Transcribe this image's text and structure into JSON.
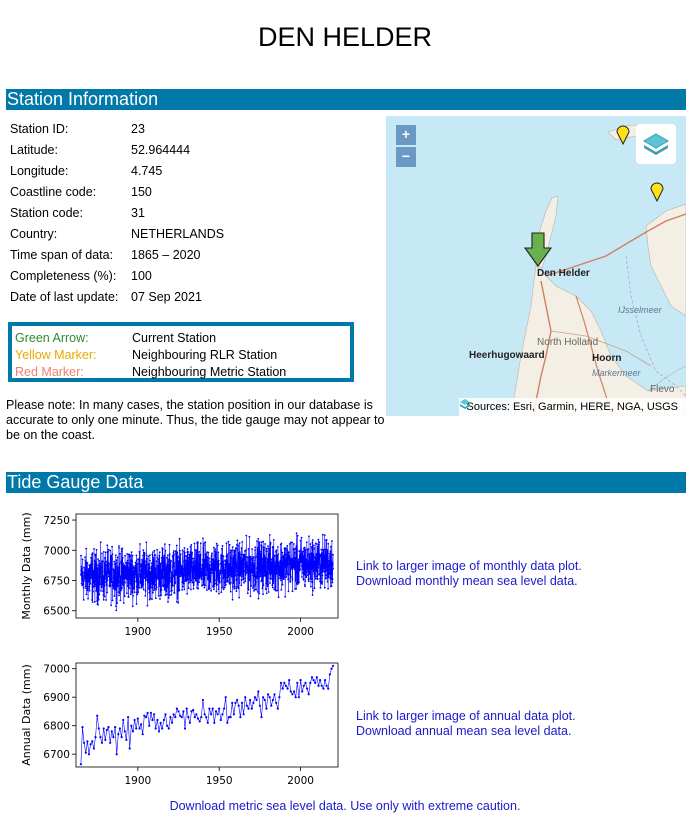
{
  "page": {
    "title": "DEN HELDER"
  },
  "station_section": {
    "heading": "Station Information",
    "rows": [
      {
        "label": "Station ID:",
        "value": "23"
      },
      {
        "label": "Latitude:",
        "value": "52.964444"
      },
      {
        "label": "Longitude:",
        "value": "4.745"
      },
      {
        "label": "Coastline code:",
        "value": "150"
      },
      {
        "label": "Station code:",
        "value": "31"
      },
      {
        "label": "Country:",
        "value": "NETHERLANDS"
      },
      {
        "label": "Time span of data:",
        "value": "1865 – 2020"
      },
      {
        "label": "Completeness (%):",
        "value": "100"
      },
      {
        "label": "Date of last update:",
        "value": "07 Sep 2021"
      }
    ]
  },
  "legend": {
    "items": [
      {
        "label": "Green Arrow:",
        "desc": "Current Station",
        "color": "#2e8b2e"
      },
      {
        "label": "Yellow Marker:",
        "desc": "Neighbouring RLR Station",
        "color": "#f0b400"
      },
      {
        "label": "Red Marker:",
        "desc": "Neighbouring Metric Station",
        "color": "#f08070"
      }
    ]
  },
  "note": "Please note: In many cases, the station position in our database is accurate to only one minute. Thus, the tide gauge may not appear to be on the coast.",
  "map": {
    "zoom_in": "+",
    "zoom_out": "−",
    "layers_icon": "layers-icon",
    "attribution": "Sources: Esri, Garmin, HERE, NGA, USGS",
    "labels": {
      "den_helder": "Den Helder",
      "ijsselmeer": "IJsselmeer",
      "north_holland": "North Holland",
      "heerhugowaard": "Heerhugowaard",
      "hoorn": "Hoorn",
      "markermeer": "Markermeer",
      "flevo": "Flevo"
    }
  },
  "tide_section": {
    "heading": "Tide Gauge Data",
    "monthly_link": "Link to larger image of monthly data plot.",
    "monthly_download": "Download monthly mean sea level data.",
    "annual_link": "Link to larger image of annual data plot.",
    "annual_download": "Download annual mean sea level data.",
    "metric_download": "Download metric sea level data. Use only with extreme caution."
  },
  "chart_data": [
    {
      "type": "line",
      "ylabel": "Monthly Data (mm)",
      "xlabel": "",
      "xlim": [
        1862,
        2023
      ],
      "ylim": [
        6440,
        7300
      ],
      "xticks": [
        1900,
        1950,
        2000
      ],
      "yticks": [
        6500,
        6750,
        7000,
        7250
      ],
      "color": "#0000ff",
      "x_start": 1865,
      "x_end": 2020,
      "trend": {
        "start": 6780,
        "end": 6900
      },
      "noise_range": 230,
      "samples": 1860
    },
    {
      "type": "line",
      "ylabel": "Annual Data (mm)",
      "xlabel": "",
      "xlim": [
        1862,
        2023
      ],
      "ylim": [
        6655,
        7020
      ],
      "xticks": [
        1900,
        1950,
        2000
      ],
      "yticks": [
        6700,
        6800,
        6900,
        7000
      ],
      "color": "#0000ff",
      "x": [
        1865,
        1866,
        1867,
        1868,
        1869,
        1870,
        1871,
        1872,
        1873,
        1874,
        1875,
        1876,
        1877,
        1878,
        1879,
        1880,
        1881,
        1882,
        1883,
        1884,
        1885,
        1886,
        1887,
        1888,
        1889,
        1890,
        1891,
        1892,
        1893,
        1894,
        1895,
        1896,
        1897,
        1898,
        1899,
        1900,
        1901,
        1902,
        1903,
        1904,
        1905,
        1906,
        1907,
        1908,
        1909,
        1910,
        1911,
        1912,
        1913,
        1914,
        1915,
        1916,
        1917,
        1918,
        1919,
        1920,
        1921,
        1922,
        1923,
        1924,
        1925,
        1926,
        1927,
        1928,
        1929,
        1930,
        1931,
        1932,
        1933,
        1934,
        1935,
        1936,
        1937,
        1938,
        1939,
        1940,
        1941,
        1942,
        1943,
        1944,
        1945,
        1946,
        1947,
        1948,
        1949,
        1950,
        1951,
        1952,
        1953,
        1954,
        1955,
        1956,
        1957,
        1958,
        1959,
        1960,
        1961,
        1962,
        1963,
        1964,
        1965,
        1966,
        1967,
        1968,
        1969,
        1970,
        1971,
        1972,
        1973,
        1974,
        1975,
        1976,
        1977,
        1978,
        1979,
        1980,
        1981,
        1982,
        1983,
        1984,
        1985,
        1986,
        1987,
        1988,
        1989,
        1990,
        1991,
        1992,
        1993,
        1994,
        1995,
        1996,
        1997,
        1998,
        1999,
        2000,
        2001,
        2002,
        2003,
        2004,
        2005,
        2006,
        2007,
        2008,
        2009,
        2010,
        2011,
        2012,
        2013,
        2014,
        2015,
        2016,
        2017,
        2018,
        2019,
        2020
      ],
      "values": [
        6665,
        6795,
        6740,
        6705,
        6745,
        6700,
        6735,
        6745,
        6720,
        6760,
        6835,
        6790,
        6760,
        6740,
        6790,
        6750,
        6785,
        6795,
        6740,
        6780,
        6760,
        6795,
        6700,
        6770,
        6790,
        6760,
        6820,
        6780,
        6750,
        6830,
        6720,
        6800,
        6780,
        6820,
        6790,
        6825,
        6790,
        6805,
        6770,
        6835,
        6830,
        6845,
        6800,
        6845,
        6820,
        6840,
        6790,
        6820,
        6780,
        6810,
        6790,
        6820,
        6840,
        6800,
        6790,
        6830,
        6810,
        6840,
        6830,
        6860,
        6850,
        6835,
        6830,
        6850,
        6790,
        6860,
        6830,
        6810,
        6850,
        6855,
        6830,
        6840,
        6825,
        6815,
        6830,
        6890,
        6840,
        6830,
        6810,
        6860,
        6840,
        6860,
        6810,
        6850,
        6840,
        6860,
        6820,
        6840,
        6860,
        6900,
        6810,
        6830,
        6830,
        6880,
        6840,
        6880,
        6890,
        6870,
        6830,
        6880,
        6840,
        6900,
        6870,
        6860,
        6890,
        6860,
        6880,
        6900,
        6890,
        6920,
        6870,
        6830,
        6900,
        6890,
        6860,
        6910,
        6900,
        6870,
        6890,
        6910,
        6880,
        6860,
        6900,
        6950,
        6930,
        6950,
        6940,
        6930,
        6960,
        6920,
        6910,
        6920,
        6900,
        6950,
        6900,
        6960,
        6920,
        6940,
        6950,
        6930,
        6910,
        6950,
        6970,
        6960,
        6950,
        6970,
        6940,
        6960,
        6940,
        6930,
        6960,
        6940,
        6930,
        6980,
        7000,
        7010
      ]
    }
  ]
}
